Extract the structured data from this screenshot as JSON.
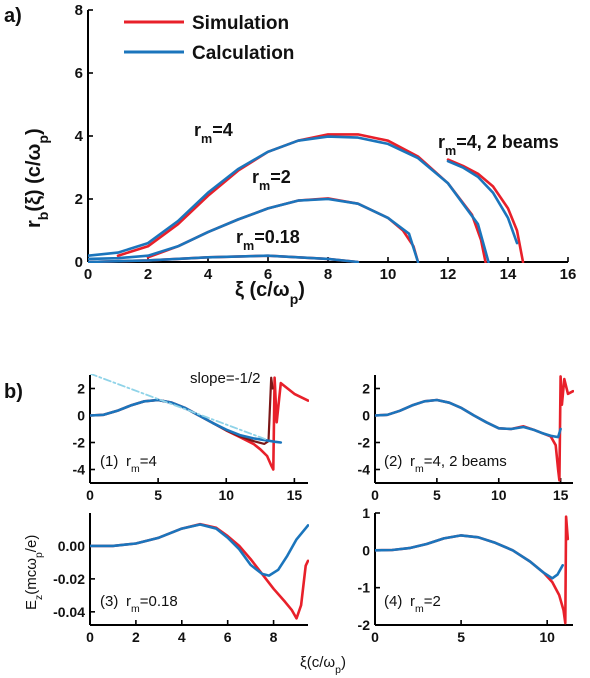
{
  "colors": {
    "simulation": "#e8202a",
    "calculation": "#1b75bc",
    "dark_simulation": "#7b1717",
    "slope_line": "#8fd3e8"
  },
  "chart_data": [
    {
      "id": "a",
      "type": "line",
      "panel_label": "a)",
      "xlabel": "ξ (c/ω",
      "xlabel_sub": "p",
      "xlabel_end": ")",
      "ylabel": "r",
      "ylabel_sub": "b",
      "ylabel_end": "(ξ) (c/ω",
      "ylabel_sub2": "p",
      "ylabel_end2": ")",
      "xlim": [
        0,
        16
      ],
      "ylim": [
        0,
        8
      ],
      "xticks": [
        "0",
        "2",
        "4",
        "6",
        "8",
        "10",
        "12",
        "14",
        "16"
      ],
      "yticks": [
        "0",
        "2",
        "4",
        "6",
        "8"
      ],
      "legend": [
        "Simulation",
        "Calculation"
      ],
      "annotations": [
        {
          "text": "r",
          "sub": "m",
          "rest": "=4"
        },
        {
          "text": "r",
          "sub": "m",
          "rest": "=2"
        },
        {
          "text": "r",
          "sub": "m",
          "rest": "=0.18"
        },
        {
          "text": "r",
          "sub": "m",
          "rest": "=4, 2 beams"
        }
      ],
      "series": [
        {
          "name": "Simulation",
          "curve": "r_m=4",
          "x": [
            1.0,
            2.0,
            3.0,
            4.0,
            5.0,
            6.0,
            7.0,
            8.0,
            9.0,
            10.0,
            11.0,
            12.0,
            12.8,
            13.1,
            13.25
          ],
          "y": [
            0.2,
            0.5,
            1.2,
            2.1,
            2.9,
            3.5,
            3.85,
            4.05,
            4.05,
            3.85,
            3.35,
            2.5,
            1.5,
            0.7,
            0.0
          ]
        },
        {
          "name": "Calculation",
          "curve": "r_m=4",
          "x": [
            0.0,
            1.0,
            2.0,
            3.0,
            4.0,
            5.0,
            6.0,
            7.0,
            8.0,
            9.0,
            10.0,
            11.0,
            12.0,
            13.0,
            13.35
          ],
          "y": [
            0.2,
            0.3,
            0.6,
            1.3,
            2.2,
            2.95,
            3.5,
            3.85,
            3.98,
            3.95,
            3.75,
            3.3,
            2.5,
            1.2,
            0.0
          ]
        },
        {
          "name": "Simulation",
          "curve": "r_m=4, 2 beams",
          "x": [
            12.0,
            12.5,
            13.0,
            13.5,
            14.0,
            14.3,
            14.5
          ],
          "y": [
            3.25,
            3.05,
            2.8,
            2.4,
            1.7,
            1.0,
            0.0
          ]
        },
        {
          "name": "Calculation",
          "curve": "r_m=4, 2 beams",
          "x": [
            12.0,
            12.5,
            13.0,
            13.5,
            14.0,
            14.3
          ],
          "y": [
            3.2,
            3.0,
            2.7,
            2.2,
            1.4,
            0.6
          ]
        },
        {
          "name": "Simulation",
          "curve": "r_m=2",
          "x": [
            2.0,
            3.0,
            4.0,
            5.0,
            6.0,
            7.0,
            8.0,
            9.0,
            10.0,
            10.5,
            10.85,
            11.0
          ],
          "y": [
            0.15,
            0.5,
            0.95,
            1.35,
            1.7,
            1.95,
            2.02,
            1.85,
            1.4,
            1.0,
            0.5,
            0.0
          ]
        },
        {
          "name": "Calculation",
          "curve": "r_m=2",
          "x": [
            0.0,
            1.0,
            2.0,
            3.0,
            4.0,
            5.0,
            6.0,
            7.0,
            8.0,
            9.0,
            10.0,
            10.7,
            11.0
          ],
          "y": [
            0.1,
            0.12,
            0.2,
            0.5,
            0.95,
            1.35,
            1.7,
            1.95,
            2.0,
            1.85,
            1.4,
            0.9,
            0.0
          ]
        },
        {
          "name": "Simulation",
          "curve": "r_m=0.18",
          "x": [
            0.0,
            2.0,
            4.0,
            6.0,
            8.0,
            9.0
          ],
          "y": [
            0.0,
            0.05,
            0.15,
            0.2,
            0.1,
            0.0
          ]
        },
        {
          "name": "Calculation",
          "curve": "r_m=0.18",
          "x": [
            0.0,
            2.0,
            4.0,
            6.0,
            8.0,
            9.0
          ],
          "y": [
            0.0,
            0.05,
            0.15,
            0.2,
            0.1,
            0.0
          ]
        }
      ]
    },
    {
      "id": "b",
      "type": "line",
      "panel_label": "b)",
      "ylabel": "E",
      "ylabel_sub": "z",
      "ylabel_end": "(mcω",
      "ylabel_sub2": "p",
      "ylabel_end2": "/e)",
      "xlabel": "ξ(c/ω",
      "xlabel_sub": "p",
      "xlabel_end": ")",
      "panels": [
        {
          "label": "(1)",
          "annotation": {
            "text": "r",
            "sub": "m",
            "rest": "=4"
          },
          "slope_label": "slope=-1/2",
          "xlim": [
            0,
            16
          ],
          "ylim": [
            -5,
            3
          ],
          "xticks": [
            "0",
            "5",
            "10",
            "15"
          ],
          "yticks": [
            "2",
            "0",
            "-2",
            "-4"
          ],
          "series": [
            {
              "name": "Simulation",
              "x": [
                0,
                1,
                2,
                3,
                4,
                5,
                6,
                7,
                8,
                9,
                10,
                11,
                12,
                12.5,
                13,
                13.3,
                13.45,
                13.55,
                13.7,
                14,
                14.5,
                15,
                16
              ],
              "y": [
                0.0,
                0.05,
                0.35,
                0.75,
                1.05,
                1.15,
                0.95,
                0.55,
                0.0,
                -0.55,
                -1.1,
                -1.6,
                -2.1,
                -2.5,
                -3.0,
                -3.7,
                -4.0,
                2.8,
                -0.5,
                2.4,
                2.0,
                1.6,
                1.1
              ]
            },
            {
              "name": "Simulation dark",
              "x": [
                0,
                1,
                2,
                3,
                4,
                5,
                6,
                7,
                8,
                9,
                10,
                11,
                12,
                12.8,
                13.1,
                13.3,
                13.4
              ],
              "y": [
                0.0,
                0.05,
                0.35,
                0.75,
                1.05,
                1.15,
                0.95,
                0.55,
                0.0,
                -0.55,
                -1.1,
                -1.55,
                -1.9,
                -2.1,
                -1.9,
                2.8,
                2.0
              ]
            },
            {
              "name": "Calculation",
              "x": [
                0,
                1,
                2,
                3,
                4,
                5,
                6,
                7,
                8,
                9,
                10,
                11,
                12,
                13,
                13.6,
                14
              ],
              "y": [
                0.0,
                0.05,
                0.35,
                0.75,
                1.05,
                1.15,
                0.95,
                0.55,
                0.0,
                -0.55,
                -1.05,
                -1.45,
                -1.7,
                -1.85,
                -1.95,
                -2.0
              ]
            },
            {
              "name": "slope=-1/2",
              "x": [
                0,
                13
              ],
              "y": [
                3.1,
                -1.8
              ]
            }
          ]
        },
        {
          "label": "(2)",
          "annotation": {
            "text": "r",
            "sub": "m",
            "rest": "=4, 2 beams"
          },
          "xlim": [
            0,
            16
          ],
          "ylim": [
            -5,
            3
          ],
          "xticks": [
            "0",
            "5",
            "10",
            "15"
          ],
          "yticks": [
            "2",
            "0",
            "-2",
            "-4"
          ],
          "series": [
            {
              "name": "Simulation",
              "x": [
                0,
                1,
                2,
                3,
                4,
                5,
                6,
                7,
                8,
                9,
                10,
                11,
                12,
                12.8,
                13.5,
                14.2,
                14.6,
                14.8,
                14.9,
                15.0,
                15.1,
                15.3,
                15.6,
                16
              ],
              "y": [
                0.0,
                0.05,
                0.35,
                0.75,
                1.05,
                1.15,
                0.95,
                0.55,
                0.0,
                -0.5,
                -0.95,
                -1.0,
                -0.8,
                -1.05,
                -1.3,
                -1.55,
                -2.2,
                -4.0,
                -4.8,
                2.9,
                0.8,
                2.7,
                1.6,
                1.8
              ]
            },
            {
              "name": "Calculation",
              "x": [
                0,
                1,
                2,
                3,
                4,
                5,
                6,
                7,
                8,
                9,
                10,
                11,
                12,
                12.8,
                13.5,
                14.2,
                14.8,
                15.0
              ],
              "y": [
                0.0,
                0.05,
                0.35,
                0.75,
                1.05,
                1.15,
                0.95,
                0.55,
                0.0,
                -0.5,
                -0.95,
                -1.0,
                -0.85,
                -1.05,
                -1.3,
                -1.5,
                -1.6,
                -1.0
              ]
            }
          ]
        },
        {
          "label": "(3)",
          "annotation": {
            "text": "r",
            "sub": "m",
            "rest": "=0.18"
          },
          "xlim": [
            0,
            9.5
          ],
          "ylim": [
            -0.048,
            0.02
          ],
          "xticks": [
            "0",
            "2",
            "4",
            "6",
            "8"
          ],
          "yticks": [
            "0.00",
            "-0.02",
            "-0.04"
          ],
          "series": [
            {
              "name": "Simulation",
              "x": [
                0,
                1,
                2,
                3,
                4,
                4.8,
                5.5,
                6,
                6.5,
                7,
                7.5,
                8,
                8.5,
                8.8,
                9.0,
                9.2,
                9.4,
                9.5
              ],
              "y": [
                0.0,
                0.0,
                0.0015,
                0.005,
                0.0105,
                0.0132,
                0.011,
                0.006,
                0.0,
                -0.008,
                -0.017,
                -0.026,
                -0.034,
                -0.039,
                -0.044,
                -0.036,
                -0.012,
                -0.009
              ]
            },
            {
              "name": "Calculation",
              "x": [
                0,
                1,
                2,
                3,
                4,
                4.8,
                5.5,
                6,
                6.5,
                7,
                7.5,
                7.8,
                8.2,
                8.6,
                9.0,
                9.5
              ],
              "y": [
                0.0,
                0.0,
                0.0015,
                0.005,
                0.0105,
                0.013,
                0.0105,
                0.005,
                -0.002,
                -0.0115,
                -0.017,
                -0.018,
                -0.0145,
                -0.006,
                0.004,
                0.0125
              ]
            }
          ]
        },
        {
          "label": "(4)",
          "annotation": {
            "text": "r",
            "sub": "m",
            "rest": "=2"
          },
          "xlim": [
            0,
            11.5
          ],
          "ylim": [
            -2,
            1
          ],
          "xticks": [
            "0",
            "5",
            "10"
          ],
          "yticks": [
            "1",
            "0",
            "-1",
            "-2"
          ],
          "series": [
            {
              "name": "Simulation",
              "x": [
                0,
                1,
                2,
                3,
                4,
                5,
                6,
                7,
                8,
                9,
                9.8,
                10.3,
                10.7,
                10.95,
                11.05,
                11.1,
                11.2
              ],
              "y": [
                0.0,
                0.01,
                0.06,
                0.17,
                0.32,
                0.4,
                0.35,
                0.2,
                0.0,
                -0.3,
                -0.6,
                -0.85,
                -1.2,
                -1.6,
                -1.95,
                0.9,
                0.3
              ]
            },
            {
              "name": "Calculation",
              "x": [
                0,
                1,
                2,
                3,
                4,
                5,
                6,
                7,
                8,
                9,
                9.8,
                10.3,
                10.6,
                10.9
              ],
              "y": [
                0.0,
                0.01,
                0.06,
                0.17,
                0.32,
                0.4,
                0.35,
                0.2,
                0.0,
                -0.3,
                -0.6,
                -0.75,
                -0.65,
                -0.4
              ]
            }
          ]
        }
      ]
    }
  ]
}
